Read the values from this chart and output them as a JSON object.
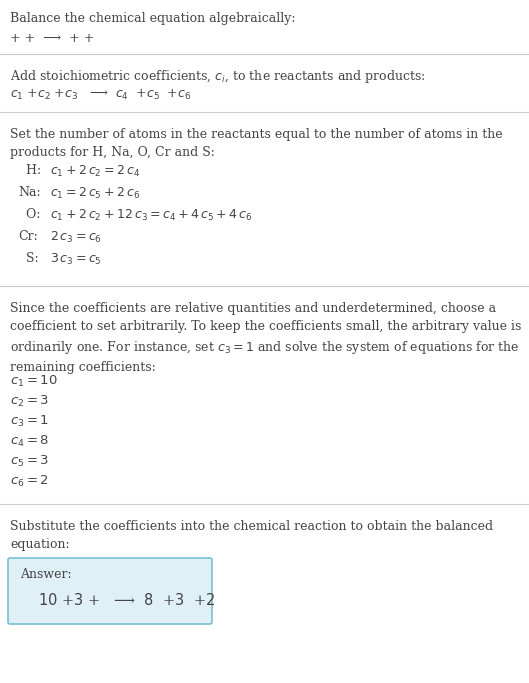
{
  "bg_color": "#ffffff",
  "text_color": "#444444",
  "title": "Balance the chemical equation algebraically:",
  "line1": "+ +  ⟶  + +",
  "section1_title": "Add stoichiometric coefficients, $c_i$, to the reactants and products:",
  "section1_eq": "$c_1$ +$c_2$ +$c_3$   ⟶  $c_4$  +$c_5$  +$c_6$",
  "section2_title": "Set the number of atoms in the reactants equal to the number of atoms in the\nproducts for H, Na, O, Cr and S:",
  "equations": [
    [
      "  H:",
      "$c_1 + 2\\,c_2 = 2\\,c_4$"
    ],
    [
      "Na:",
      "$c_1 = 2\\,c_5 + 2\\,c_6$"
    ],
    [
      "  O:",
      "$c_1 + 2\\,c_2 + 12\\,c_3 = c_4 + 4\\,c_5 + 4\\,c_6$"
    ],
    [
      "Cr:",
      "$2\\,c_3 = c_6$"
    ],
    [
      "  S:",
      "$3\\,c_3 = c_5$"
    ]
  ],
  "section3_text": "Since the coefficients are relative quantities and underdetermined, choose a\ncoefficient to set arbitrarily. To keep the coefficients small, the arbitrary value is\nordinarily one. For instance, set $c_3 = 1$ and solve the system of equations for the\nremaining coefficients:",
  "coefficients": [
    "$c_1 = 10$",
    "$c_2 = 3$",
    "$c_3 = 1$",
    "$c_4 = 8$",
    "$c_5 = 3$",
    "$c_6 = 2$"
  ],
  "section4_text": "Substitute the coefficients into the chemical reaction to obtain the balanced\nequation:",
  "answer_label": "Answer:",
  "answer_eq": "$10$ +$3$ +   ⟶  $8$  +$3$  +$2$",
  "answer_box_color": "#dff0f7",
  "answer_box_border": "#7bbfd4",
  "fontsize_body": 9.0,
  "fontsize_eq": 9.0,
  "fontsize_coef": 9.5,
  "fontsize_answer": 10.5
}
